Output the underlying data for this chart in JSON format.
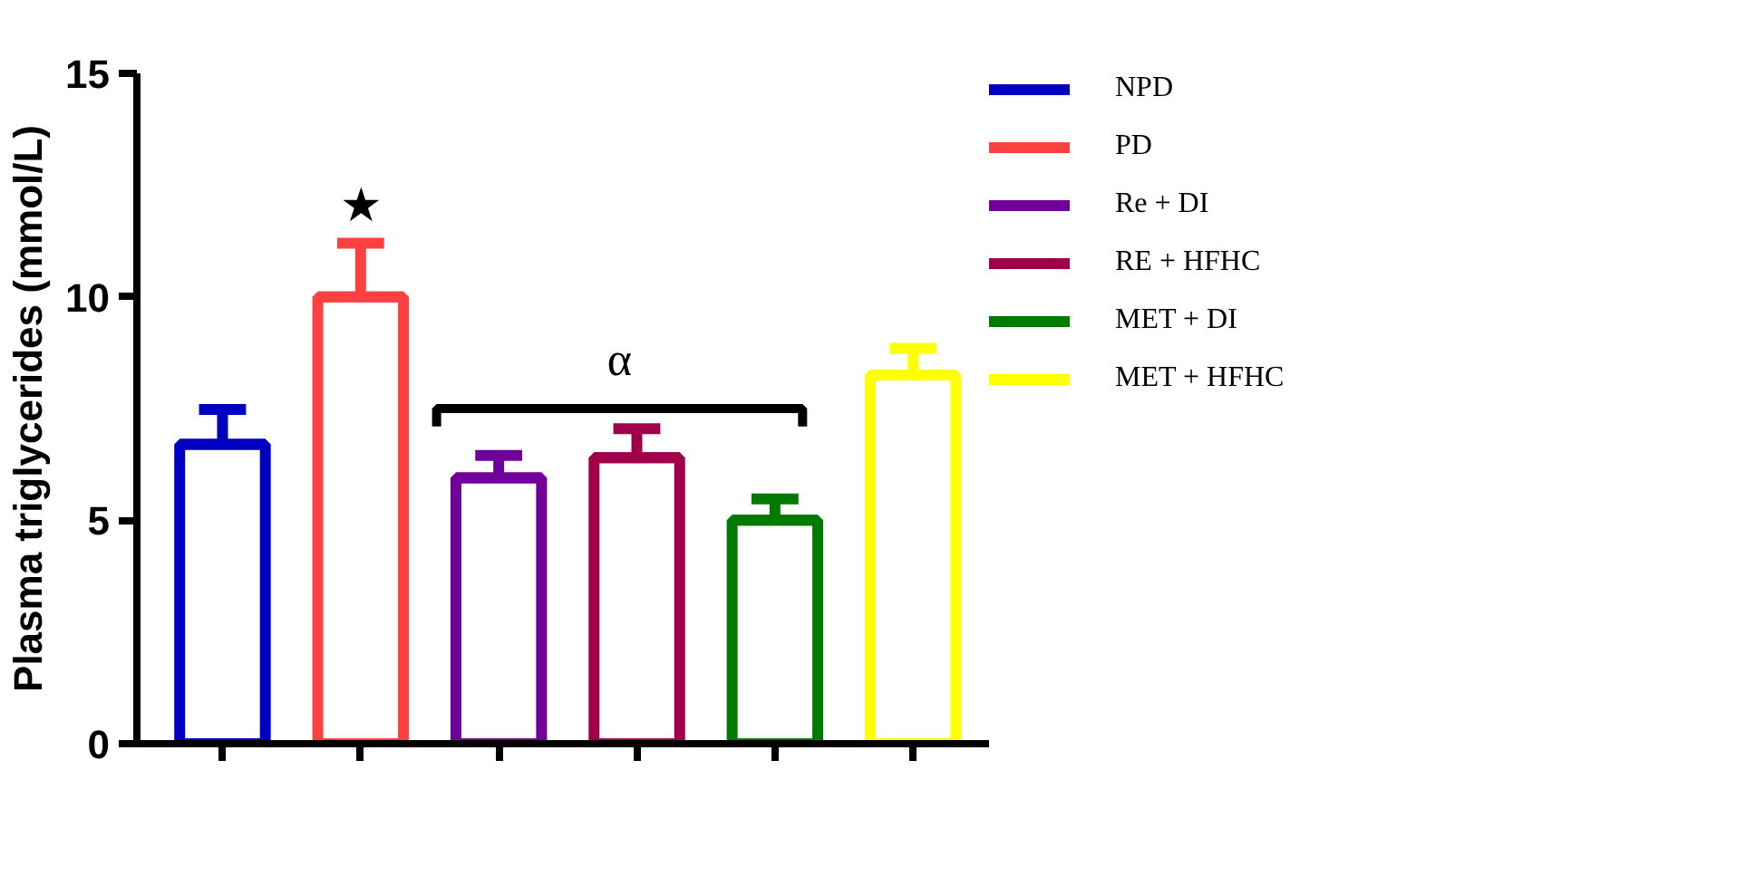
{
  "chart_data": {
    "type": "bar",
    "ylabel": "Plasma triglycerides (mmol/L)",
    "categories": [
      null,
      null,
      null,
      null,
      null,
      null
    ],
    "series": [
      {
        "name": "NPD",
        "color": "#0000c0",
        "values": [
          6.7,
          null,
          null,
          null,
          null,
          null
        ],
        "errors": [
          0.78,
          null,
          null,
          null,
          null,
          null
        ]
      },
      {
        "name": "PD",
        "color": "#ff4040",
        "values": [
          null,
          10.0,
          null,
          null,
          null,
          null
        ],
        "errors": [
          null,
          1.2,
          null,
          null,
          null,
          null
        ]
      },
      {
        "name": "Re + DI",
        "color": "#70009a",
        "values": [
          null,
          null,
          5.95,
          null,
          null,
          null
        ],
        "errors": [
          null,
          null,
          0.5,
          null,
          null,
          null
        ]
      },
      {
        "name": "RE + HFHC",
        "color": "#a0004a",
        "values": [
          null,
          null,
          null,
          6.4,
          null,
          null
        ],
        "errors": [
          null,
          null,
          null,
          0.65,
          null,
          null
        ]
      },
      {
        "name": "MET + DI",
        "color": "#007a00",
        "values": [
          null,
          null,
          null,
          null,
          5.0,
          null
        ],
        "errors": [
          null,
          null,
          null,
          null,
          0.48,
          null
        ]
      },
      {
        "name": "MET + HFHC",
        "color": "#ffff00",
        "values": [
          null,
          null,
          null,
          null,
          null,
          8.25
        ],
        "errors": [
          null,
          null,
          null,
          null,
          null,
          0.6
        ]
      }
    ],
    "ylim": [
      0,
      15
    ],
    "yticks": [
      0,
      5,
      10,
      15
    ],
    "annotations": [
      "★",
      "α"
    ],
    "grid": false,
    "legend": "top right"
  }
}
